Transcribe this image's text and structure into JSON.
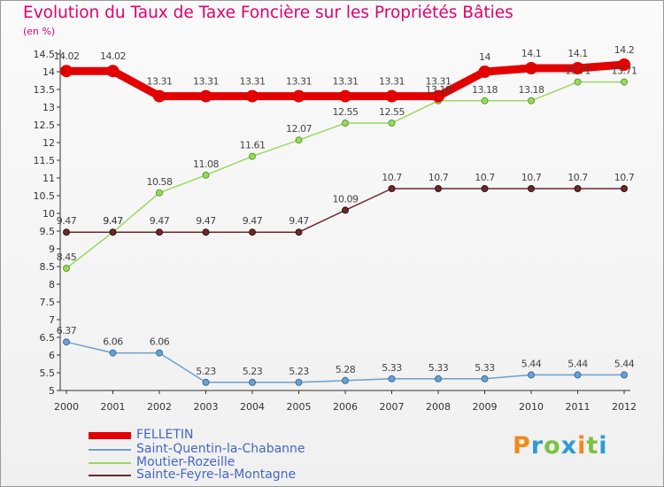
{
  "chart_data": {
    "type": "line",
    "title": "Evolution du Taux de Taxe Foncière sur les Propriétés Bâties",
    "unit_label": "(en %)",
    "xlabel": "",
    "ylabel": "",
    "ylim": [
      5,
      14.5
    ],
    "y_ticks": [
      "5",
      "5.5",
      "6",
      "6.5",
      "7",
      "7.5",
      "8",
      "8.5",
      "9",
      "9.5",
      "10",
      "10.5",
      "11",
      "11.5",
      "12",
      "12.5",
      "13",
      "13.5",
      "14",
      "14.5"
    ],
    "grid": false,
    "legend_position": "bottom-left",
    "x": [
      "2000",
      "2001",
      "2002",
      "2003",
      "2004",
      "2005",
      "2006",
      "2007",
      "2008",
      "2009",
      "2010",
      "2011",
      "2012"
    ],
    "series": [
      {
        "name": "FELLETIN",
        "color": "#e30000",
        "values": [
          14.02,
          14.02,
          13.31,
          13.31,
          13.31,
          13.31,
          13.31,
          13.31,
          13.31,
          14,
          14.1,
          14.1,
          14.2
        ],
        "labels": [
          "14.02",
          "14.02",
          "13.31",
          "13.31",
          "13.31",
          "13.31",
          "13.31",
          "13.31",
          "13.31",
          "14",
          "14.1",
          "14.1",
          "14.2"
        ]
      },
      {
        "name": "Saint-Quentin-la-Chabanne",
        "color": "#6f9fcb",
        "values": [
          6.37,
          6.06,
          6.06,
          5.23,
          5.23,
          5.23,
          5.28,
          5.33,
          5.33,
          5.33,
          5.44,
          5.44,
          5.44
        ],
        "labels": [
          "6.37",
          "6.06",
          "6.06",
          "5.23",
          "5.23",
          "5.23",
          "5.28",
          "5.33",
          "5.33",
          "5.33",
          "5.44",
          "5.44",
          "5.44"
        ]
      },
      {
        "name": "Moutier-Rozeille",
        "color": "#9ad85e",
        "values": [
          8.45,
          9.47,
          10.58,
          11.08,
          11.61,
          12.07,
          12.55,
          12.55,
          13.18,
          13.18,
          13.18,
          13.71,
          13.71
        ],
        "labels": [
          "8.45",
          "9.47",
          "10.58",
          "11.08",
          "11.61",
          "12.07",
          "12.55",
          "12.55",
          "13.18",
          "13.18",
          "13.18",
          "13.71",
          "13.71"
        ]
      },
      {
        "name": "Sainte-Feyre-la-Montagne",
        "color": "#6b2a2a",
        "values": [
          9.47,
          9.47,
          9.47,
          9.47,
          9.47,
          9.47,
          10.09,
          10.7,
          10.7,
          10.7,
          10.7,
          10.7,
          10.7
        ],
        "labels": [
          "9.47",
          "9.47",
          "9.47",
          "9.47",
          "9.47",
          "9.47",
          "10.09",
          "10.7",
          "10.7",
          "10.7",
          "10.7",
          "10.7",
          "10.7"
        ]
      }
    ]
  },
  "logo": {
    "letters": [
      "P",
      "r",
      "o",
      "x",
      "i",
      "t",
      "i"
    ],
    "colors": [
      "#f08a1c",
      "#2e9bd6",
      "#7cc242",
      "#2e9bd6",
      "#f08a1c",
      "#7cc242",
      "#2e9bd6"
    ]
  }
}
